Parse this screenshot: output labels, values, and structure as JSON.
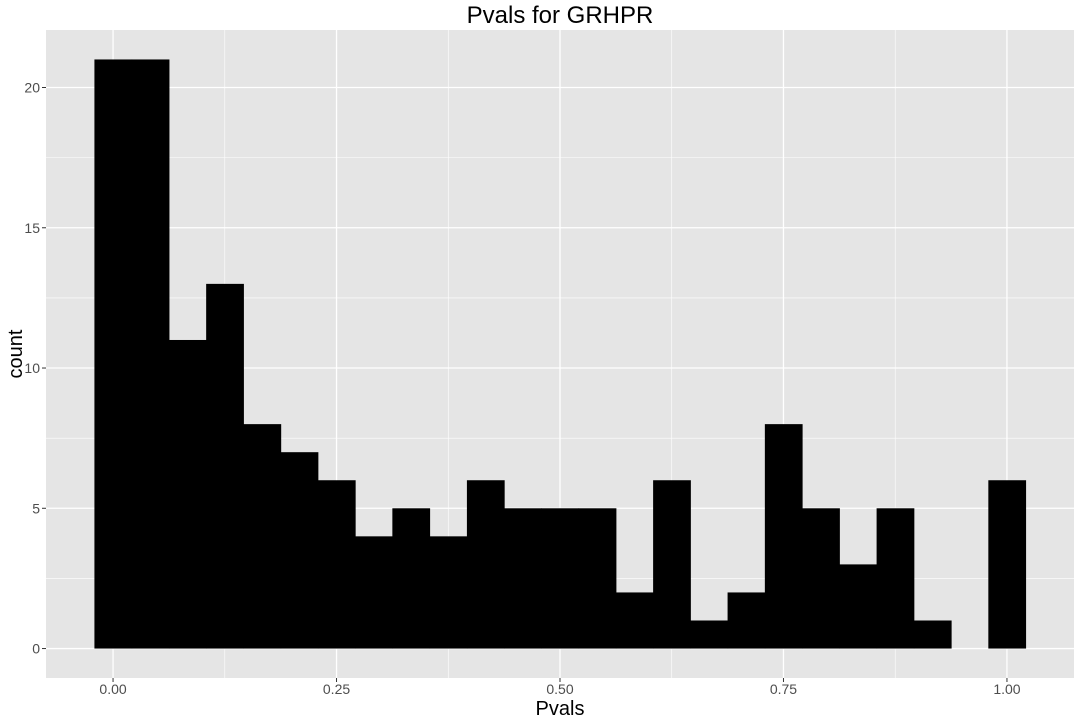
{
  "chart_data": {
    "type": "bar",
    "title": "Pvals for GRHPR",
    "xlabel": "Pvals",
    "ylabel": "count",
    "x_ticks": [
      "0.00",
      "0.25",
      "0.50",
      "0.75",
      "1.00"
    ],
    "x_tick_values": [
      0,
      0.25,
      0.5,
      0.75,
      1.0
    ],
    "y_ticks": [
      "0",
      "5",
      "10",
      "15",
      "20"
    ],
    "y_tick_values": [
      0,
      5,
      10,
      15,
      20
    ],
    "xlim": [
      -0.075,
      1.075
    ],
    "ylim": [
      -1.05,
      22.05
    ],
    "bin_width": 0.04167,
    "bin_centers": [
      0.0,
      0.0417,
      0.0833,
      0.125,
      0.1667,
      0.2083,
      0.25,
      0.2917,
      0.3333,
      0.375,
      0.4167,
      0.4583,
      0.5,
      0.5417,
      0.5833,
      0.625,
      0.6667,
      0.7083,
      0.75,
      0.7917,
      0.8333,
      0.875,
      0.9167,
      0.9583,
      1.0
    ],
    "values": [
      21,
      21,
      11,
      13,
      8,
      7,
      6,
      4,
      5,
      4,
      6,
      5,
      5,
      5,
      2,
      6,
      1,
      2,
      8,
      5,
      3,
      5,
      1,
      0,
      6
    ],
    "grid": true,
    "colors": {
      "bar_fill": "#000000",
      "panel_background": "#e5e5e5",
      "grid": "#ffffff"
    }
  }
}
